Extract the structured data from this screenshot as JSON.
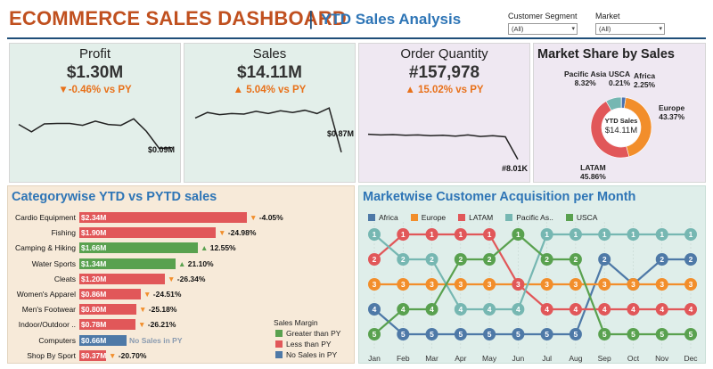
{
  "header": {
    "title": "ECOMMERCE SALES DASHBOARD",
    "separator": "|",
    "subtitle": "YTD Sales Analysis"
  },
  "filters": [
    {
      "label": "Customer Segment",
      "value": "(All)"
    },
    {
      "label": "Market",
      "value": "(All)"
    }
  ],
  "kpis": [
    {
      "title": "Profit",
      "value": "$1.30M",
      "delta": "▼-0.46% vs PY",
      "end_label": "$0.09M",
      "spark": [
        0.72,
        0.56,
        0.73,
        0.74,
        0.74,
        0.7,
        0.79,
        0.72,
        0.7,
        0.84,
        0.57,
        0.2,
        0.22
      ]
    },
    {
      "title": "Sales",
      "value": "$14.11M",
      "delta": "▲ 5.04% vs PY",
      "end_label": "$0.87M",
      "spark": [
        0.72,
        0.82,
        0.78,
        0.8,
        0.79,
        0.84,
        0.8,
        0.85,
        0.82,
        0.86,
        0.8,
        0.9,
        0.1
      ]
    },
    {
      "title": "Order Quantity",
      "value": "#157,978",
      "delta": "▲ 15.02% vs PY",
      "end_label": "#8.01K",
      "spark": [
        0.82,
        0.8,
        0.81,
        0.79,
        0.8,
        0.78,
        0.79,
        0.77,
        0.8,
        0.76,
        0.78,
        0.75,
        0.15
      ]
    }
  ],
  "market_share": {
    "title": "Market Share by Sales",
    "center_title": "YTD Sales",
    "center_value": "$14.11M",
    "slices": [
      {
        "name": "Africa",
        "pct": 2.25,
        "pct_label": "2.25%",
        "color": "#4c72b0"
      },
      {
        "name": "Europe",
        "pct": 43.37,
        "pct_label": "43.37%",
        "color": "#f28e2b"
      },
      {
        "name": "LATAM",
        "pct": 45.86,
        "pct_label": "45.86%",
        "color": "#e15759"
      },
      {
        "name": "Pacific Asia",
        "pct": 8.32,
        "pct_label": "8.32%",
        "color": "#76b7b2"
      },
      {
        "name": "USCA",
        "pct": 0.21,
        "pct_label": "0.21%",
        "color": "#59a14f"
      }
    ]
  },
  "category_panel": {
    "title": "Categorywise YTD vs PYTD sales",
    "max_value": 2.34,
    "rows": [
      {
        "name": "Cardio Equipment",
        "value": 2.34,
        "label": "$2.34M",
        "status": "less",
        "delta": "-4.05%"
      },
      {
        "name": "Fishing",
        "value": 1.9,
        "label": "$1.90M",
        "status": "less",
        "delta": "-24.98%"
      },
      {
        "name": "Camping & Hiking",
        "value": 1.66,
        "label": "$1.66M",
        "status": "greater",
        "delta": "12.55%"
      },
      {
        "name": "Water Sports",
        "value": 1.34,
        "label": "$1.34M",
        "status": "greater",
        "delta": "21.10%"
      },
      {
        "name": "Cleats",
        "value": 1.2,
        "label": "$1.20M",
        "status": "less",
        "delta": "-26.34%"
      },
      {
        "name": "Women's Apparel",
        "value": 0.86,
        "label": "$0.86M",
        "status": "less",
        "delta": "-24.51%"
      },
      {
        "name": "Men's Footwear",
        "value": 0.8,
        "label": "$0.80M",
        "status": "less",
        "delta": "-25.18%"
      },
      {
        "name": "Indoor/Outdoor ..",
        "value": 0.78,
        "label": "$0.78M",
        "status": "less",
        "delta": "-26.21%"
      },
      {
        "name": "Computers",
        "value": 0.66,
        "label": "$0.66M",
        "status": "none",
        "delta": "No Sales in PY"
      },
      {
        "name": "Shop By Sport",
        "value": 0.37,
        "label": "$0.37M",
        "status": "less",
        "delta": "-20.70%"
      }
    ],
    "legend": {
      "title": "Sales Margin",
      "items": [
        {
          "label": "Greater than PY",
          "color": "#59a14f"
        },
        {
          "label": "Less than PY",
          "color": "#e15759"
        },
        {
          "label": "No Sales in PY",
          "color": "#4e79a7"
        }
      ]
    },
    "colors": {
      "greater": "#59a14f",
      "less": "#e15759",
      "none": "#4e79a7",
      "up_arrow": "#59a14f",
      "down_arrow": "#f28e2b"
    }
  },
  "acquisition_panel": {
    "title": "Marketwise Customer Acquisition per Month",
    "months": [
      "Jan",
      "Feb",
      "Mar",
      "Apr",
      "May",
      "Jun",
      "Jul",
      "Aug",
      "Sep",
      "Oct",
      "Nov",
      "Dec"
    ],
    "series": [
      {
        "name": "Africa",
        "color": "#4e79a7",
        "ranks": [
          4,
          5,
          5,
          5,
          5,
          5,
          5,
          5,
          2,
          3,
          2,
          2
        ]
      },
      {
        "name": "Europe",
        "color": "#f28e2b",
        "ranks": [
          3,
          3,
          3,
          3,
          3,
          3,
          3,
          3,
          3,
          3,
          3,
          3
        ]
      },
      {
        "name": "LATAM",
        "color": "#e15759",
        "ranks": [
          2,
          1,
          1,
          1,
          1,
          3,
          4,
          4,
          4,
          4,
          4,
          4
        ]
      },
      {
        "name": "Pacific As..",
        "color": "#76b7b2",
        "ranks": [
          1,
          2,
          2,
          4,
          4,
          4,
          1,
          1,
          1,
          1,
          1,
          1
        ]
      },
      {
        "name": "USCA",
        "color": "#59a14f",
        "ranks": [
          5,
          4,
          4,
          2,
          2,
          1,
          2,
          2,
          5,
          5,
          5,
          5
        ]
      }
    ]
  }
}
